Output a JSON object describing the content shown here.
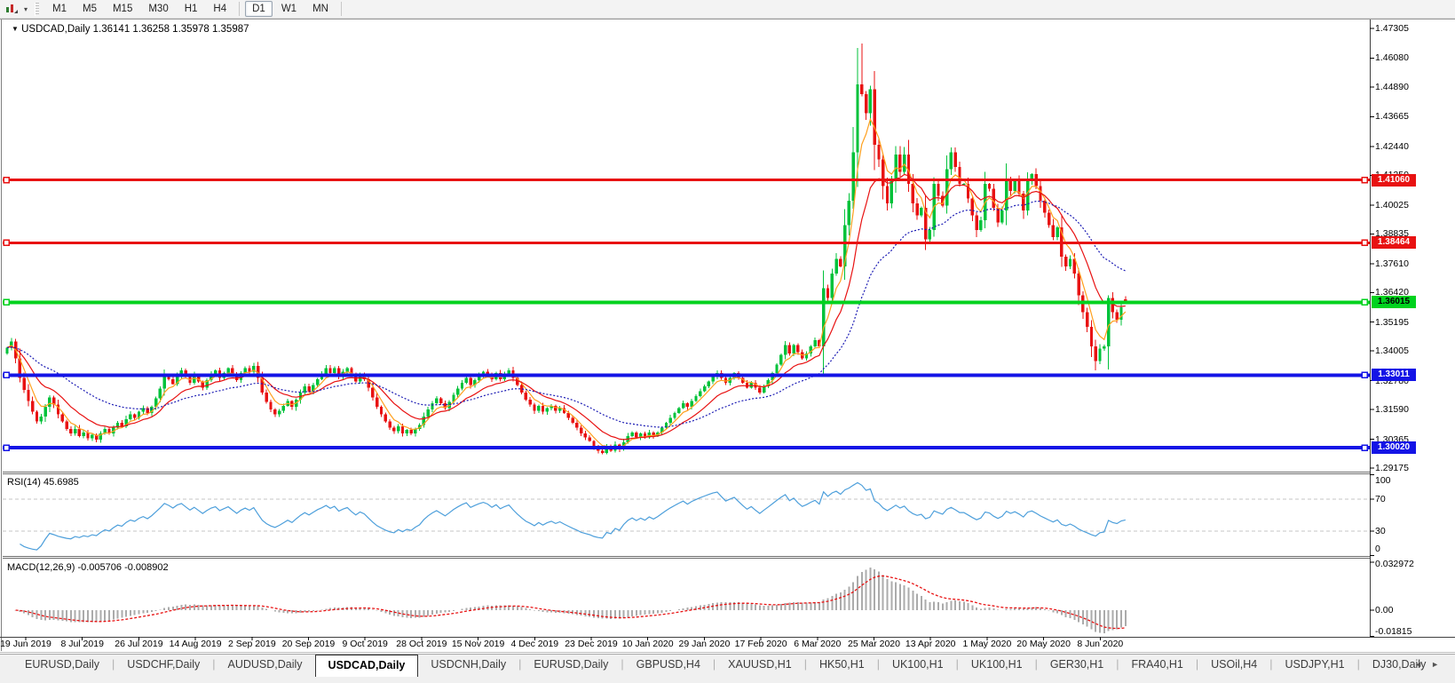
{
  "toolbar": {
    "timeframes": [
      "M1",
      "M5",
      "M15",
      "M30",
      "H1",
      "H4",
      "D1",
      "W1",
      "MN"
    ],
    "active_timeframe": "D1"
  },
  "chart": {
    "title_symbol": "USDCAD,Daily",
    "ohlc_text": "1.36141 1.36258 1.35978 1.35987",
    "menu_caret": "▼",
    "price_ticks": [
      "1.47305",
      "1.46080",
      "1.44890",
      "1.43665",
      "1.42440",
      "1.41250",
      "1.40025",
      "1.38835",
      "1.37610",
      "1.36420",
      "1.35195",
      "1.34005",
      "1.32780",
      "1.31590",
      "1.30365",
      "1.29175"
    ],
    "hlines": [
      {
        "value": 1.4106,
        "label": "1.41060",
        "color": "#e81212",
        "text_color": "#ffffff",
        "width": 3
      },
      {
        "value": 1.38464,
        "label": "1.38464",
        "color": "#e81212",
        "text_color": "#ffffff",
        "width": 3
      },
      {
        "value": 1.36015,
        "label": "1.36015",
        "color": "#00d21e",
        "text_color": "#000000",
        "width": 4
      },
      {
        "value": 1.33011,
        "label": "1.33011",
        "color": "#1414e6",
        "text_color": "#ffffff",
        "width": 4
      },
      {
        "value": 1.3002,
        "label": "1.30020",
        "color": "#1414e6",
        "text_color": "#ffffff",
        "width": 4
      }
    ],
    "colors": {
      "up_candle": "#00c23a",
      "down_candle": "#e81212",
      "ma_fast": "#ffa01e",
      "ma_mid": "#e81212",
      "ma_slow": "#1c1cb4",
      "rsi_line": "#4d9fdb",
      "macd_bar": "#ababab",
      "macd_signal": "#e81212",
      "level_dash": "#c6c6c6",
      "axis_line": "#404040"
    }
  },
  "chart_data": {
    "type": "candlestick",
    "symbol": "USDCAD",
    "timeframe": "Daily",
    "x_labels": [
      "19 Jun 2019",
      "8 Jul 2019",
      "26 Jul 2019",
      "14 Aug 2019",
      "2 Sep 2019",
      "20 Sep 2019",
      "9 Oct 2019",
      "28 Oct 2019",
      "15 Nov 2019",
      "4 Dec 2019",
      "23 Dec 2019",
      "10 Jan 2020",
      "29 Jan 2020",
      "17 Feb 2020",
      "6 Mar 2020",
      "25 Mar 2020",
      "13 Apr 2020",
      "1 May 2020",
      "20 May 2020",
      "8 Jun 2020"
    ],
    "price_axis_range": {
      "min": 1.29071,
      "max": 1.47598
    },
    "closes": [
      1.3415,
      1.344,
      1.337,
      1.329,
      1.324,
      1.3195,
      1.315,
      1.311,
      1.313,
      1.317,
      1.321,
      1.318,
      1.314,
      1.311,
      1.308,
      1.306,
      1.308,
      1.305,
      1.3065,
      1.304,
      1.3055,
      1.3035,
      1.306,
      1.308,
      1.306,
      1.3085,
      1.3105,
      1.309,
      1.312,
      1.314,
      1.3125,
      1.315,
      1.3165,
      1.3145,
      1.317,
      1.3205,
      1.3245,
      1.33,
      1.3285,
      1.3265,
      1.33,
      1.332,
      1.3295,
      1.327,
      1.33,
      1.3275,
      1.325,
      1.328,
      1.3305,
      1.332,
      1.329,
      1.331,
      1.333,
      1.3305,
      1.328,
      1.331,
      1.333,
      1.3315,
      1.334,
      1.329,
      1.323,
      1.319,
      1.316,
      1.314,
      1.3155,
      1.3175,
      1.3195,
      1.317,
      1.32,
      1.323,
      1.3255,
      1.3235,
      1.326,
      1.3285,
      1.3305,
      1.333,
      1.331,
      1.333,
      1.3295,
      1.3315,
      1.333,
      1.33,
      1.3275,
      1.33,
      1.3285,
      1.325,
      1.321,
      1.317,
      1.314,
      1.311,
      1.3085,
      1.307,
      1.309,
      1.306,
      1.3075,
      1.306,
      1.308,
      1.3095,
      1.313,
      1.316,
      1.3185,
      1.3205,
      1.3185,
      1.3165,
      1.319,
      1.322,
      1.3245,
      1.327,
      1.329,
      1.326,
      1.328,
      1.33,
      1.3315,
      1.3305,
      1.3285,
      1.331,
      1.3285,
      1.3305,
      1.332,
      1.329,
      1.326,
      1.323,
      1.32,
      1.318,
      1.3155,
      1.3175,
      1.315,
      1.3165,
      1.3175,
      1.3155,
      1.3165,
      1.3145,
      1.3125,
      1.3105,
      1.3085,
      1.306,
      1.3045,
      1.303,
      1.3005,
      1.299,
      1.298,
      1.3005,
      1.299,
      1.3015,
      1.2995,
      1.3025,
      1.305,
      1.3065,
      1.3045,
      1.306,
      1.3045,
      1.3065,
      1.305,
      1.3065,
      1.3085,
      1.3105,
      1.3125,
      1.3145,
      1.3165,
      1.3185,
      1.317,
      1.3195,
      1.3215,
      1.3235,
      1.3255,
      1.3275,
      1.3295,
      1.331,
      1.329,
      1.327,
      1.329,
      1.331,
      1.329,
      1.327,
      1.325,
      1.327,
      1.325,
      1.323,
      1.3255,
      1.328,
      1.331,
      1.3345,
      1.3385,
      1.3425,
      1.339,
      1.3425,
      1.3395,
      1.337,
      1.339,
      1.342,
      1.3445,
      1.342,
      1.366,
      1.362,
      1.372,
      1.378,
      1.375,
      1.392,
      1.402,
      1.422,
      1.45,
      1.446,
      1.438,
      1.448,
      1.425,
      1.419,
      1.408,
      1.401,
      1.41,
      1.421,
      1.414,
      1.421,
      1.409,
      1.401,
      1.396,
      1.399,
      1.386,
      1.39,
      1.409,
      1.404,
      1.4,
      1.415,
      1.422,
      1.416,
      1.409,
      1.409,
      1.403,
      1.396,
      1.39,
      1.394,
      1.409,
      1.407,
      1.399,
      1.393,
      1.398,
      1.411,
      1.406,
      1.41,
      1.405,
      1.398,
      1.41,
      1.413,
      1.408,
      1.402,
      1.397,
      1.392,
      1.387,
      1.391,
      1.379,
      1.375,
      1.378,
      1.372,
      1.363,
      1.356,
      1.35,
      1.342,
      1.336,
      1.341,
      1.342,
      1.362,
      1.356,
      1.353,
      1.358,
      1.35987
    ],
    "overrides": {
      "200": {
        "high": 1.465
      },
      "201": {
        "high": 1.4668
      },
      "256": {
        "low": 1.332
      },
      "259": {
        "high": 1.363
      },
      "263": {
        "open": 1.36141,
        "high": 1.36258,
        "low": 1.35978
      }
    },
    "moving_averages": [
      {
        "period": 5,
        "color": "#ffa01e",
        "dash": ""
      },
      {
        "period": 13,
        "color": "#e81212",
        "dash": ""
      },
      {
        "period": 34,
        "color": "#1c1cb4",
        "dash": "2,2"
      }
    ]
  },
  "rsi": {
    "label": "RSI(14) 45.6985",
    "period": 14,
    "levels": [
      70,
      30
    ],
    "ticks": [
      {
        "value": 100,
        "label": "100"
      },
      {
        "value": 70,
        "label": "70"
      },
      {
        "value": 30,
        "label": "30"
      },
      {
        "value": 0,
        "label": "0"
      }
    ]
  },
  "macd": {
    "label": "MACD(12,26,9) -0.005706 -0.008902",
    "fast": 12,
    "slow": 26,
    "signal": 9,
    "ticks": [
      {
        "value": 0.032972,
        "label": "0.032972"
      },
      {
        "value": 0,
        "label": "0.00"
      },
      {
        "value": -0.01815,
        "label": "-0.01815"
      }
    ]
  },
  "tabs": {
    "items": [
      "EURUSD,Daily",
      "USDCHF,Daily",
      "AUDUSD,Daily",
      "USDCAD,Daily",
      "USDCNH,Daily",
      "EURUSD,Daily",
      "GBPUSD,H4",
      "XAUUSD,H1",
      "HK50,H1",
      "UK100,H1",
      "UK100,H1",
      "GER30,H1",
      "FRA40,H1",
      "USOil,H4",
      "USDJPY,H1",
      "DJ30,Daily"
    ],
    "active_index": 3,
    "scroll_left_icon": "◄",
    "scroll_right_icon": "►"
  }
}
